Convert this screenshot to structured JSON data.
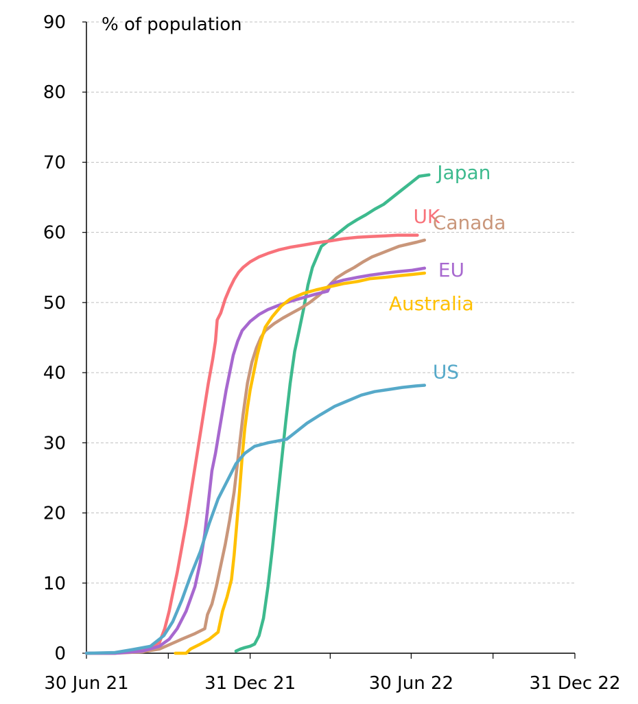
{
  "chart_data": {
    "type": "line",
    "title": "",
    "ylabel": "% of population",
    "xlabel": "",
    "ylim": [
      0,
      90
    ],
    "xlim": [
      "2021-06-30",
      "2022-12-31"
    ],
    "yticks": [
      0,
      10,
      20,
      30,
      40,
      50,
      60,
      70,
      80,
      90
    ],
    "xticks": [
      {
        "date": "2021-06-30",
        "label": "30 Jun 21"
      },
      {
        "date": "2021-12-31",
        "label": "31 Dec 21"
      },
      {
        "date": "2022-06-30",
        "label": "30 Jun 22"
      },
      {
        "date": "2022-12-31",
        "label": "31 Dec 22"
      }
    ],
    "grid": "horizontal-dashed",
    "legend": "inline-labels-at-line-ends",
    "series": [
      {
        "name": "Japan",
        "color": "#3dba8e",
        "points": [
          [
            "2021-12-15",
            0.3
          ],
          [
            "2021-12-20",
            0.6
          ],
          [
            "2021-12-25",
            0.8
          ],
          [
            "2021-12-31",
            1.0
          ],
          [
            "2022-01-05",
            1.3
          ],
          [
            "2022-01-10",
            2.5
          ],
          [
            "2022-01-15",
            5.0
          ],
          [
            "2022-01-20",
            9.5
          ],
          [
            "2022-01-25",
            15.0
          ],
          [
            "2022-01-30",
            21.0
          ],
          [
            "2022-02-04",
            27.0
          ],
          [
            "2022-02-09",
            33.0
          ],
          [
            "2022-02-14",
            38.5
          ],
          [
            "2022-02-19",
            43.0
          ],
          [
            "2022-02-24",
            46.0
          ],
          [
            "2022-03-01",
            49.0
          ],
          [
            "2022-03-06",
            52.5
          ],
          [
            "2022-03-11",
            55.0
          ],
          [
            "2022-03-16",
            56.5
          ],
          [
            "2022-03-21",
            58.0
          ],
          [
            "2022-03-31",
            59.0
          ],
          [
            "2022-04-10",
            60.0
          ],
          [
            "2022-04-20",
            61.0
          ],
          [
            "2022-04-30",
            61.8
          ],
          [
            "2022-05-10",
            62.5
          ],
          [
            "2022-05-20",
            63.3
          ],
          [
            "2022-05-30",
            64.0
          ],
          [
            "2022-06-09",
            65.0
          ],
          [
            "2022-06-19",
            66.0
          ],
          [
            "2022-06-29",
            67.0
          ],
          [
            "2022-07-09",
            68.0
          ],
          [
            "2022-07-20",
            68.2
          ]
        ]
      },
      {
        "name": "UK",
        "color": "#f8727a",
        "points": [
          [
            "2021-06-30",
            0.0
          ],
          [
            "2021-08-01",
            0.0
          ],
          [
            "2021-09-01",
            0.4
          ],
          [
            "2021-09-20",
            1.5
          ],
          [
            "2021-09-26",
            3.5
          ],
          [
            "2021-10-01",
            6.0
          ],
          [
            "2021-10-05",
            8.5
          ],
          [
            "2021-10-10",
            11.5
          ],
          [
            "2021-10-15",
            15.0
          ],
          [
            "2021-10-20",
            18.5
          ],
          [
            "2021-10-25",
            22.5
          ],
          [
            "2021-10-30",
            26.5
          ],
          [
            "2021-11-04",
            30.5
          ],
          [
            "2021-11-09",
            34.5
          ],
          [
            "2021-11-14",
            38.5
          ],
          [
            "2021-11-19",
            42.0
          ],
          [
            "2021-11-22",
            44.5
          ],
          [
            "2021-11-24",
            47.5
          ],
          [
            "2021-11-28",
            48.5
          ],
          [
            "2021-12-03",
            50.5
          ],
          [
            "2021-12-08",
            52.0
          ],
          [
            "2021-12-13",
            53.3
          ],
          [
            "2021-12-18",
            54.3
          ],
          [
            "2021-12-23",
            55.0
          ],
          [
            "2021-12-31",
            55.8
          ],
          [
            "2022-01-10",
            56.5
          ],
          [
            "2022-01-20",
            57.0
          ],
          [
            "2022-02-01",
            57.5
          ],
          [
            "2022-02-15",
            57.9
          ],
          [
            "2022-03-01",
            58.2
          ],
          [
            "2022-03-15",
            58.5
          ],
          [
            "2022-04-01",
            58.8
          ],
          [
            "2022-04-15",
            59.1
          ],
          [
            "2022-05-01",
            59.3
          ],
          [
            "2022-05-15",
            59.4
          ],
          [
            "2022-06-01",
            59.5
          ],
          [
            "2022-06-15",
            59.6
          ],
          [
            "2022-07-07",
            59.6
          ]
        ]
      },
      {
        "name": "Canada",
        "color": "#c9967a",
        "points": [
          [
            "2021-06-30",
            0.0
          ],
          [
            "2021-08-01",
            0.0
          ],
          [
            "2021-09-01",
            0.2
          ],
          [
            "2021-09-20",
            0.6
          ],
          [
            "2021-10-01",
            1.2
          ],
          [
            "2021-10-15",
            2.0
          ],
          [
            "2021-10-30",
            2.8
          ],
          [
            "2021-11-10",
            3.5
          ],
          [
            "2021-11-13",
            5.5
          ],
          [
            "2021-11-18",
            7.0
          ],
          [
            "2021-11-23",
            9.5
          ],
          [
            "2021-11-28",
            12.5
          ],
          [
            "2021-12-03",
            15.5
          ],
          [
            "2021-12-08",
            19.0
          ],
          [
            "2021-12-13",
            23.0
          ],
          [
            "2021-12-18",
            28.5
          ],
          [
            "2021-12-23",
            34.0
          ],
          [
            "2021-12-28",
            38.5
          ],
          [
            "2022-01-02",
            41.5
          ],
          [
            "2022-01-07",
            43.5
          ],
          [
            "2022-01-12",
            45.0
          ],
          [
            "2022-01-17",
            46.0
          ],
          [
            "2022-01-27",
            47.0
          ],
          [
            "2022-02-06",
            47.8
          ],
          [
            "2022-02-16",
            48.5
          ],
          [
            "2022-02-26",
            49.2
          ],
          [
            "2022-03-08",
            50.0
          ],
          [
            "2022-03-18",
            51.0
          ],
          [
            "2022-03-28",
            52.2
          ],
          [
            "2022-04-07",
            53.5
          ],
          [
            "2022-04-17",
            54.3
          ],
          [
            "2022-04-27",
            55.0
          ],
          [
            "2022-05-07",
            55.8
          ],
          [
            "2022-05-17",
            56.5
          ],
          [
            "2022-05-27",
            57.0
          ],
          [
            "2022-06-06",
            57.5
          ],
          [
            "2022-06-16",
            58.0
          ],
          [
            "2022-06-26",
            58.3
          ],
          [
            "2022-07-06",
            58.6
          ],
          [
            "2022-07-15",
            58.9
          ]
        ]
      },
      {
        "name": "EU",
        "color": "#a768cf",
        "points": [
          [
            "2021-06-30",
            0.0
          ],
          [
            "2021-08-01",
            0.0
          ],
          [
            "2021-09-01",
            0.3
          ],
          [
            "2021-09-20",
            1.0
          ],
          [
            "2021-10-01",
            2.0
          ],
          [
            "2021-10-10",
            3.5
          ],
          [
            "2021-10-20",
            6.0
          ],
          [
            "2021-10-30",
            9.5
          ],
          [
            "2021-11-05",
            13.0
          ],
          [
            "2021-11-10",
            17.0
          ],
          [
            "2021-11-14",
            21.5
          ],
          [
            "2021-11-18",
            26.0
          ],
          [
            "2021-11-22",
            28.5
          ],
          [
            "2021-11-26",
            31.5
          ],
          [
            "2021-11-30",
            34.5
          ],
          [
            "2021-12-04",
            37.5
          ],
          [
            "2021-12-08",
            40.0
          ],
          [
            "2021-12-12",
            42.5
          ],
          [
            "2021-12-17",
            44.5
          ],
          [
            "2021-12-22",
            46.0
          ],
          [
            "2021-12-31",
            47.3
          ],
          [
            "2022-01-10",
            48.3
          ],
          [
            "2022-01-20",
            49.0
          ],
          [
            "2022-02-01",
            49.6
          ],
          [
            "2022-02-15",
            50.2
          ],
          [
            "2022-03-01",
            50.7
          ],
          [
            "2022-03-15",
            51.2
          ],
          [
            "2022-03-28",
            51.6
          ],
          [
            "2022-04-01",
            52.7
          ],
          [
            "2022-04-15",
            53.2
          ],
          [
            "2022-05-01",
            53.6
          ],
          [
            "2022-05-15",
            53.9
          ],
          [
            "2022-06-01",
            54.2
          ],
          [
            "2022-06-15",
            54.4
          ],
          [
            "2022-07-01",
            54.6
          ],
          [
            "2022-07-15",
            54.9
          ]
        ]
      },
      {
        "name": "Australia",
        "color": "#ffc000",
        "points": [
          [
            "2021-10-08",
            0.0
          ],
          [
            "2021-10-20",
            0.0
          ],
          [
            "2021-10-25",
            0.6
          ],
          [
            "2021-11-05",
            1.3
          ],
          [
            "2021-11-15",
            2.0
          ],
          [
            "2021-11-25",
            3.0
          ],
          [
            "2021-11-30",
            6.0
          ],
          [
            "2021-12-05",
            8.0
          ],
          [
            "2021-12-10",
            10.5
          ],
          [
            "2021-12-13",
            14.0
          ],
          [
            "2021-12-16",
            18.5
          ],
          [
            "2021-12-19",
            23.0
          ],
          [
            "2021-12-22",
            28.0
          ],
          [
            "2021-12-25",
            32.0
          ],
          [
            "2021-12-28",
            35.0
          ],
          [
            "2021-12-31",
            37.5
          ],
          [
            "2022-01-04",
            40.0
          ],
          [
            "2022-01-08",
            42.5
          ],
          [
            "2022-01-12",
            44.5
          ],
          [
            "2022-01-17",
            46.5
          ],
          [
            "2022-01-25",
            48.0
          ],
          [
            "2022-02-04",
            49.5
          ],
          [
            "2022-02-14",
            50.5
          ],
          [
            "2022-03-01",
            51.3
          ],
          [
            "2022-03-15",
            51.8
          ],
          [
            "2022-04-01",
            52.3
          ],
          [
            "2022-04-15",
            52.7
          ],
          [
            "2022-05-01",
            53.0
          ],
          [
            "2022-05-15",
            53.4
          ],
          [
            "2022-06-01",
            53.6
          ],
          [
            "2022-06-15",
            53.8
          ],
          [
            "2022-07-01",
            54.0
          ],
          [
            "2022-07-15",
            54.2
          ]
        ]
      },
      {
        "name": "US",
        "color": "#56a9c9",
        "points": [
          [
            "2021-06-30",
            0.0
          ],
          [
            "2021-08-01",
            0.1
          ],
          [
            "2021-08-20",
            0.5
          ],
          [
            "2021-09-10",
            1.0
          ],
          [
            "2021-09-25",
            2.5
          ],
          [
            "2021-10-05",
            4.5
          ],
          [
            "2021-10-15",
            7.5
          ],
          [
            "2021-10-25",
            11.0
          ],
          [
            "2021-11-05",
            14.5
          ],
          [
            "2021-11-15",
            18.5
          ],
          [
            "2021-11-25",
            22.0
          ],
          [
            "2021-12-05",
            24.5
          ],
          [
            "2021-12-15",
            27.0
          ],
          [
            "2021-12-25",
            28.5
          ],
          [
            "2022-01-05",
            29.5
          ],
          [
            "2022-01-20",
            30.0
          ],
          [
            "2022-02-10",
            30.5
          ],
          [
            "2022-02-20",
            31.5
          ],
          [
            "2022-03-05",
            32.8
          ],
          [
            "2022-03-20",
            34.0
          ],
          [
            "2022-04-05",
            35.2
          ],
          [
            "2022-04-20",
            36.0
          ],
          [
            "2022-05-05",
            36.8
          ],
          [
            "2022-05-20",
            37.3
          ],
          [
            "2022-06-05",
            37.6
          ],
          [
            "2022-06-20",
            37.9
          ],
          [
            "2022-07-05",
            38.1
          ],
          [
            "2022-07-15",
            38.2
          ]
        ]
      }
    ]
  }
}
